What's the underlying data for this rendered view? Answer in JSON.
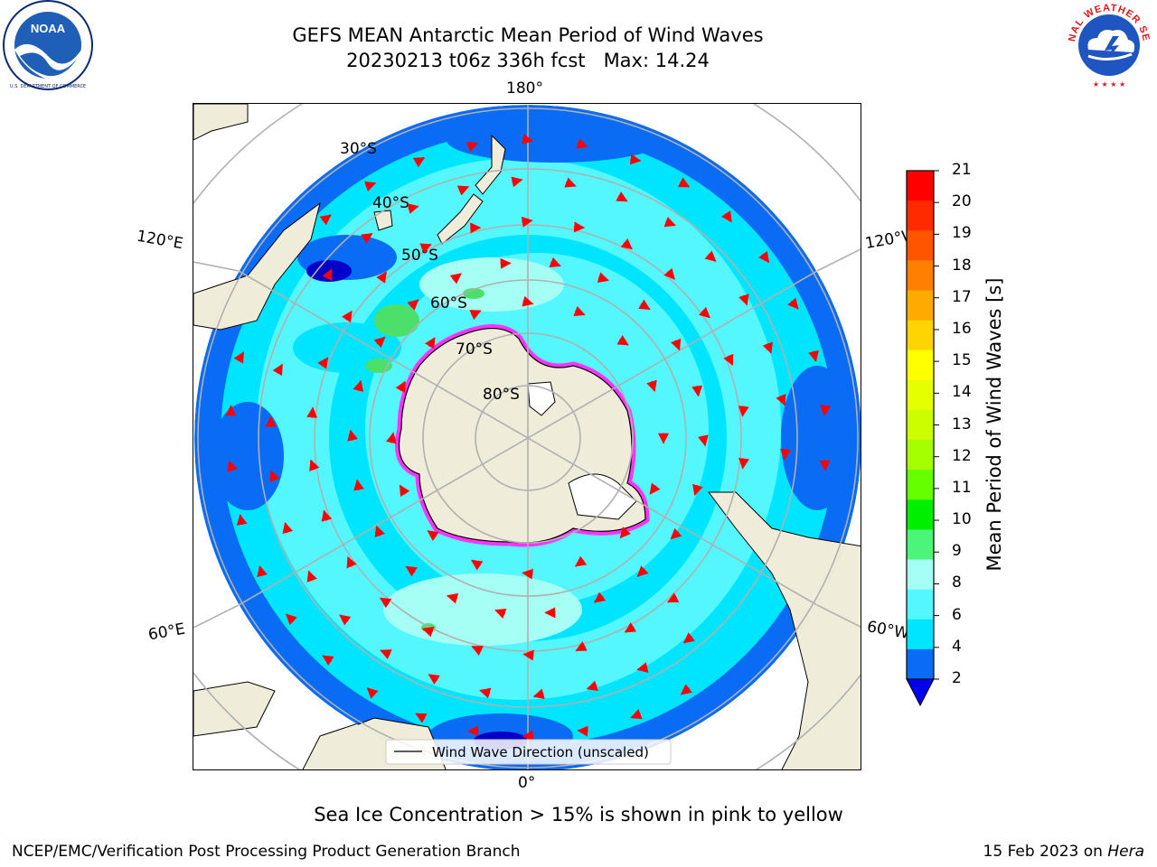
{
  "header": {
    "title_line1": "GEFS MEAN Antarctic Mean Period of Wind Waves",
    "title_line2": "20230213 t06z 336h fcst   Max: 14.24"
  },
  "logos": {
    "left": {
      "name": "noaa-logo",
      "text": "NOAA",
      "ring_text": "NATIONAL OCEANIC AND ATMOSPHERIC ADMINISTRATION · U.S. DEPARTMENT OF COMMERCE"
    },
    "right": {
      "name": "nws-logo",
      "ring_text": "NATIONAL WEATHER SERVICE"
    }
  },
  "map": {
    "projection": "south-polar-stereographic",
    "longitude_labels": {
      "top": "180°",
      "bottom": "0°",
      "left_upper": "120°E",
      "left_lower": "60°E",
      "right_upper": "120°W",
      "right_lower": "60°W"
    },
    "latitude_labels": [
      "30°S",
      "40°S",
      "50°S",
      "60°S",
      "70°S",
      "80°S"
    ],
    "colors": {
      "land": "#efedd9",
      "ocean_deep": "#0a6cf5",
      "ocean_low": "#00e5ff",
      "ocean_mid": "#55f7ff",
      "ocean_light": "#a6fff5",
      "green": "#4ce06a",
      "arrows": "#ff0000",
      "ice": "#ff33ff",
      "grid": "#b0b0b0"
    }
  },
  "legend": {
    "label": "Wind Wave Direction (unscaled)"
  },
  "colorbar": {
    "label": "Mean Period of Wind Waves [s]",
    "ticks": [
      "21",
      "20",
      "19",
      "18",
      "17",
      "16",
      "15",
      "14",
      "13",
      "12",
      "11",
      "10",
      "9",
      "8",
      "6",
      "4",
      "2"
    ],
    "colors": [
      "#ff0000",
      "#ff2a00",
      "#ff5500",
      "#ff8000",
      "#ffaa00",
      "#ffd400",
      "#ffff00",
      "#e5ff00",
      "#cbff00",
      "#a6ff00",
      "#66ff00",
      "#00ee00",
      "#4cf57a",
      "#a6fff5",
      "#55f7ff",
      "#00e5ff",
      "#0a6cf5"
    ],
    "under_color": "#0000ee"
  },
  "footer": {
    "note": "Sea Ice Concentration > 15% is shown in pink to yellow",
    "left": "NCEP/EMC/Verification Post Processing Product Generation Branch",
    "right_prefix": "15 Feb 2023 on ",
    "right_italic": "Hera"
  }
}
